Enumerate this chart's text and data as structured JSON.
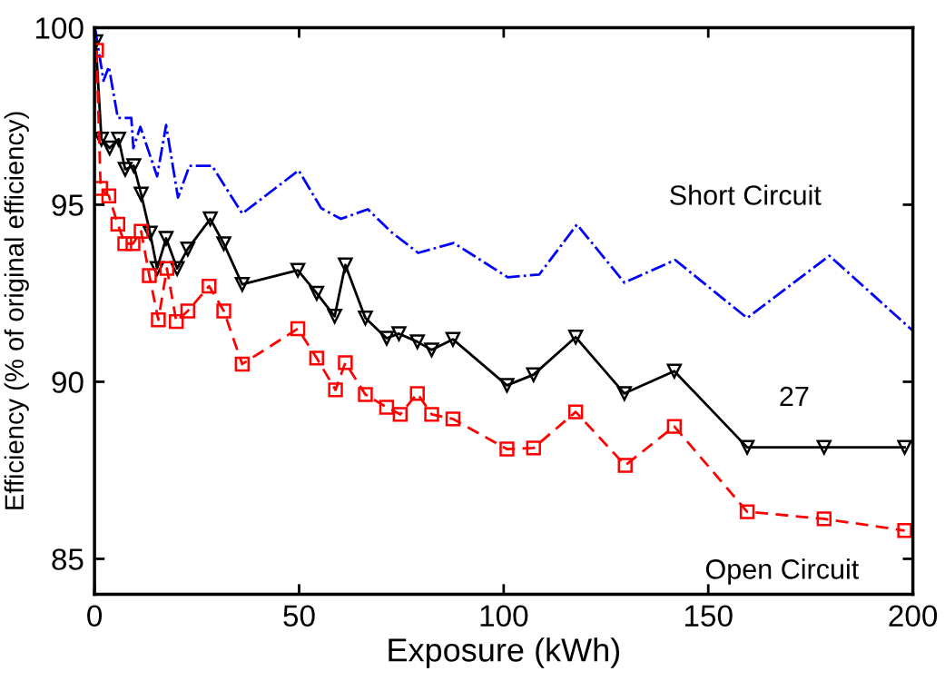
{
  "chart_data": {
    "type": "line",
    "xlabel": "Exposure (kWh)",
    "ylabel": "Efficiency (% of original efficiency)",
    "xlim": [
      0,
      200
    ],
    "xticks": [
      0,
      50,
      100,
      150,
      200
    ],
    "ylim": [
      84,
      100
    ],
    "yticks": [
      85,
      90,
      95,
      100
    ],
    "grid": false,
    "legend": false,
    "series": [
      {
        "color": "#0000ff",
        "line_style": "dashdot",
        "marker": "none",
        "x": [
          0.2,
          2.2,
          3.5,
          5.7,
          9.0,
          9.5,
          11.2,
          15.3,
          17.5,
          20.4,
          23.2,
          28.7,
          36.1,
          49.9,
          55.4,
          60.2,
          66.8,
          72.5,
          79.1,
          87.8,
          101.0,
          108.7,
          117.9,
          129.5,
          141.9,
          159.5,
          179.6,
          199.8
        ],
        "values": [
          99.95,
          98.5,
          98.9,
          97.45,
          97.45,
          96.6,
          97.2,
          95.8,
          97.25,
          95.2,
          96.1,
          96.1,
          94.75,
          95.97,
          94.9,
          94.6,
          94.87,
          94.23,
          93.64,
          93.92,
          92.95,
          93.03,
          94.44,
          92.8,
          93.44,
          91.8,
          93.56,
          91.46
        ]
      },
      {
        "color": "#000000",
        "line_style": "solid",
        "marker": "triangle",
        "x": [
          0.3,
          1.7,
          3.7,
          5.9,
          7.5,
          9.6,
          11.4,
          13.6,
          15.3,
          17.5,
          20.2,
          22.8,
          28.3,
          31.6,
          36.1,
          49.7,
          54.3,
          58.7,
          61.3,
          66.2,
          71.4,
          74.4,
          78.9,
          82.4,
          87.6,
          100.8,
          107.3,
          117.6,
          129.5,
          141.7,
          159.5,
          178.3,
          198.0
        ],
        "values": [
          99.6,
          96.85,
          96.6,
          96.85,
          96.0,
          96.1,
          95.3,
          94.2,
          93.2,
          94.05,
          93.2,
          93.75,
          94.6,
          93.9,
          92.75,
          93.15,
          92.5,
          91.85,
          93.3,
          91.8,
          91.23,
          91.36,
          91.13,
          90.9,
          91.2,
          89.9,
          90.2,
          91.26,
          89.67,
          90.3,
          88.15,
          88.15,
          88.15
        ]
      },
      {
        "color": "#ff0000",
        "line_style": "dashed",
        "marker": "square",
        "x": [
          0.5,
          1.5,
          3.5,
          5.7,
          7.4,
          9.4,
          11.4,
          13.4,
          15.6,
          17.7,
          20.0,
          22.8,
          28.0,
          31.6,
          36.1,
          49.7,
          54.3,
          58.9,
          61.3,
          66.2,
          71.4,
          74.7,
          78.9,
          82.4,
          87.6,
          100.8,
          107.3,
          117.6,
          129.7,
          141.7,
          159.5,
          178.3,
          198.0
        ],
        "values": [
          99.36,
          95.46,
          95.25,
          94.45,
          93.9,
          93.9,
          94.25,
          93.0,
          91.75,
          93.2,
          91.7,
          92.0,
          92.7,
          92.0,
          90.5,
          91.5,
          90.67,
          89.77,
          90.54,
          89.64,
          89.28,
          89.08,
          89.67,
          89.08,
          88.95,
          88.1,
          88.13,
          89.15,
          87.64,
          88.74,
          86.33,
          86.13,
          85.8
        ]
      }
    ],
    "annotations": [
      "Short Circuit",
      "27",
      "Open Circuit"
    ]
  }
}
